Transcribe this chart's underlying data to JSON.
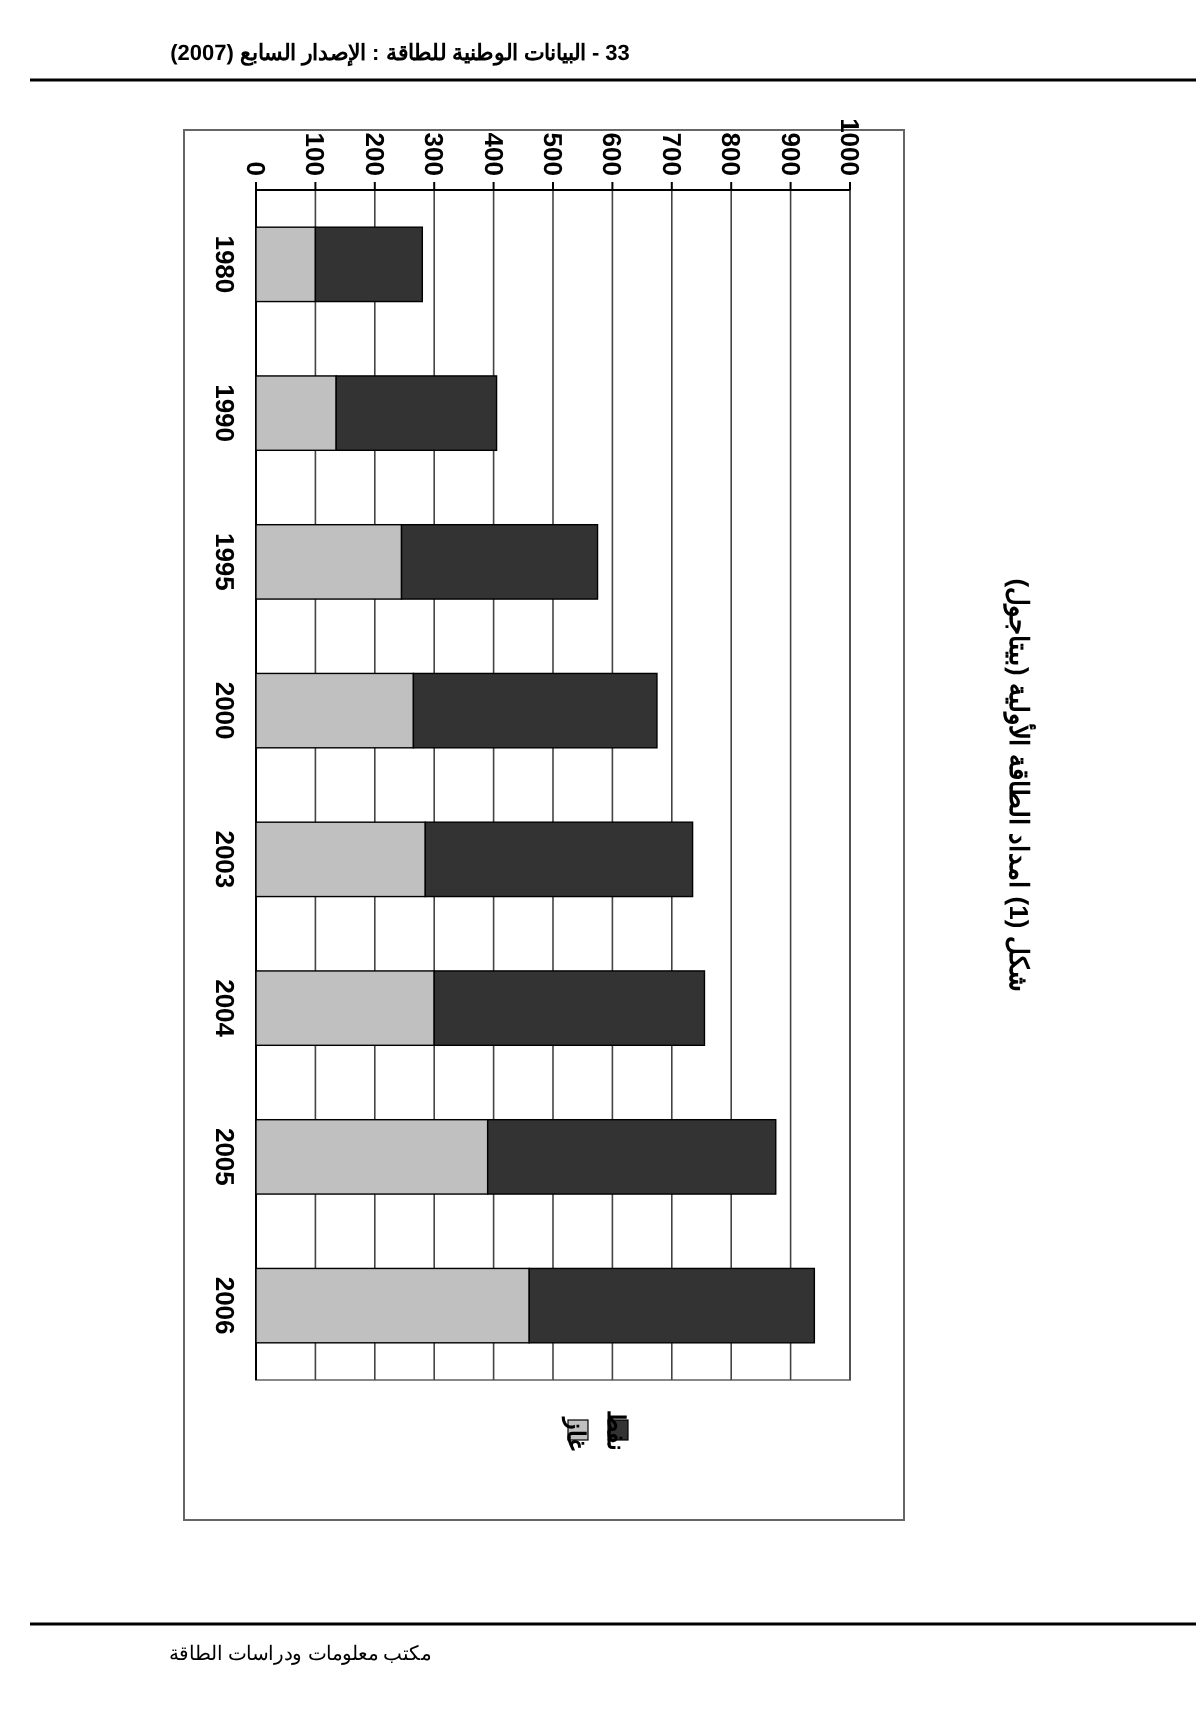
{
  "chart_data": {
    "type": "bar",
    "title": "شكل (1) امداد الطاقة الأولية (بيتاجول)",
    "categories": [
      "1980",
      "1990",
      "1995",
      "2000",
      "2003",
      "2004",
      "2005",
      "2006"
    ],
    "series": [
      {
        "name": "غاز",
        "color": "#c0c0c0",
        "values": [
          100,
          135,
          245,
          265,
          285,
          300,
          390,
          460
        ]
      },
      {
        "name": "نفط",
        "color": "#333333",
        "values": [
          180,
          270,
          330,
          410,
          450,
          455,
          485,
          480
        ]
      }
    ],
    "stacked": true,
    "orientation": "horizontal",
    "xlim": [
      0,
      1000
    ],
    "xticks": [
      0,
      100,
      200,
      300,
      400,
      500,
      600,
      700,
      800,
      900,
      1000
    ],
    "grid": "x",
    "legend": "bottom",
    "annotations": [
      "33 - البيانات الوطنية للطاقة : الإصدار السابع (2007)",
      "مكتب معلومات ودراسات الطاقة"
    ]
  }
}
